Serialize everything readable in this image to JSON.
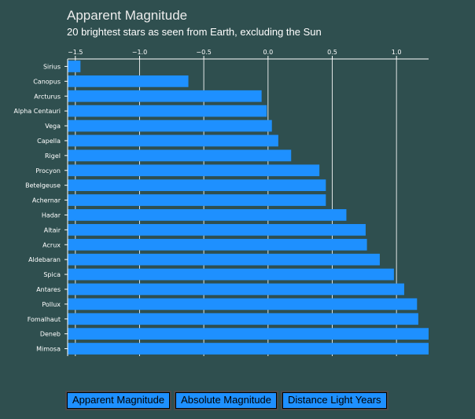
{
  "header": {
    "title": "Apparent Magnitude",
    "subtitle": "20 brightest stars as seen from Earth, excluding the Sun"
  },
  "buttons": {
    "apparent_label": "Apparent Magnitude",
    "absolute_label": "Absolute Magnitude",
    "distance_label": "Distance Light Years"
  },
  "colors": {
    "background": "#2f4f4f",
    "bar": "#1e90ff",
    "axis": "#ffffff",
    "grid": "#ffffff"
  },
  "chart_data": {
    "type": "bar",
    "orientation": "horizontal",
    "title": "Apparent Magnitude",
    "subtitle": "20 brightest stars as seen from Earth, excluding the Sun",
    "xlim": [
      -1.56,
      1.25
    ],
    "xaxis_position": "top",
    "xticks": [
      -1.5,
      -1.0,
      -0.5,
      0.0,
      0.5,
      1.0
    ],
    "xtick_labels": [
      "−1.5",
      "−1.0",
      "−0.5",
      "0.0",
      "0.5",
      "1.0"
    ],
    "grid": true,
    "categories": [
      "Sirius",
      "Canopus",
      "Arcturus",
      "Alpha Centauri",
      "Vega",
      "Capella",
      "Rigel",
      "Procyon",
      "Betelgeuse",
      "Achernar",
      "Hadar",
      "Altair",
      "Acrux",
      "Aldebaran",
      "Spica",
      "Antares",
      "Pollux",
      "Fomalhaut",
      "Deneb",
      "Mimosa"
    ],
    "values": [
      -1.46,
      -0.62,
      -0.05,
      -0.01,
      0.03,
      0.08,
      0.18,
      0.4,
      0.45,
      0.45,
      0.61,
      0.76,
      0.77,
      0.87,
      0.98,
      1.06,
      1.16,
      1.17,
      1.25,
      1.25
    ]
  }
}
